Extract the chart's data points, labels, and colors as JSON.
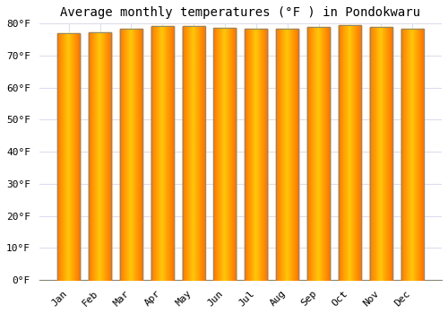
{
  "title": "Average monthly temperatures (°F ) in Pondokwaru",
  "months": [
    "Jan",
    "Feb",
    "Mar",
    "Apr",
    "May",
    "Jun",
    "Jul",
    "Aug",
    "Sep",
    "Oct",
    "Nov",
    "Dec"
  ],
  "values": [
    77.0,
    77.4,
    78.3,
    79.2,
    79.2,
    78.6,
    78.3,
    78.3,
    79.0,
    79.5,
    79.0,
    78.4
  ],
  "bar_color_center": "#FFD040",
  "bar_color_edge": "#F0A000",
  "background_color": "#FFFFFF",
  "plot_bg_color": "#FFFFFF",
  "ylim": [
    0,
    80
  ],
  "yticks": [
    0,
    10,
    20,
    30,
    40,
    50,
    60,
    70,
    80
  ],
  "grid_color": "#DDDDEE",
  "title_fontsize": 10,
  "tick_fontsize": 8,
  "bar_edge_color": "#888877"
}
